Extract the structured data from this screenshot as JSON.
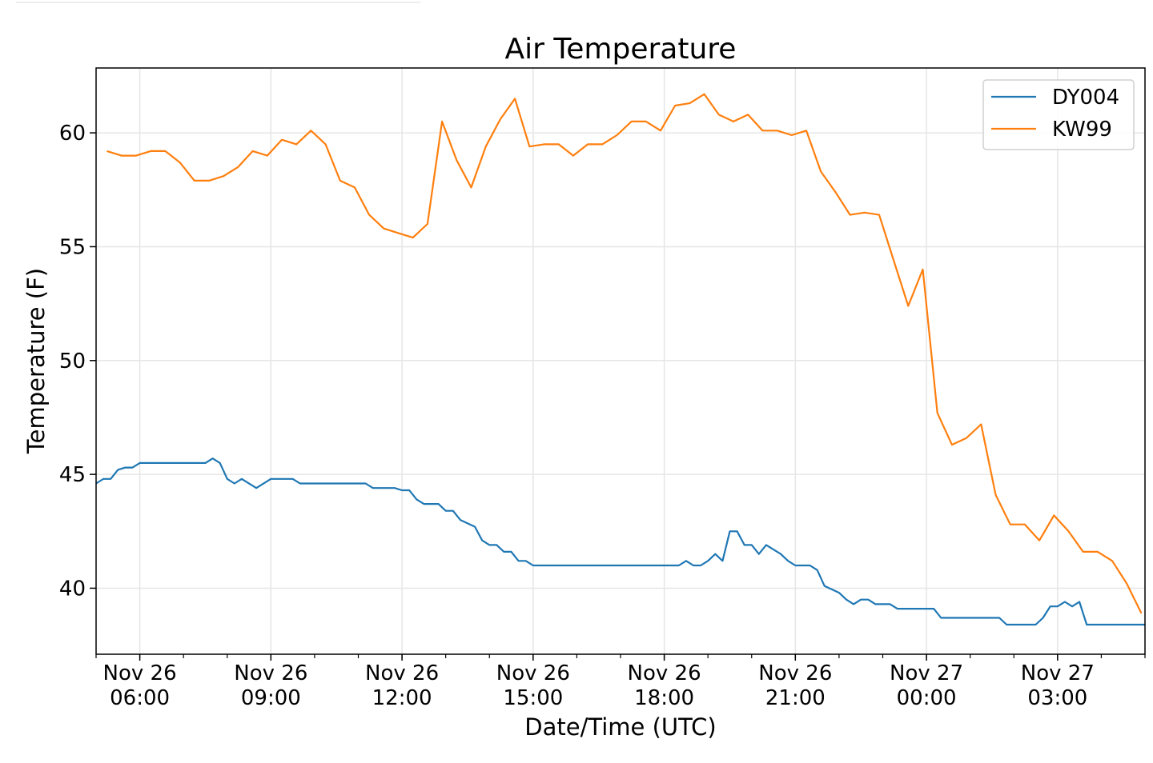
{
  "chart_data": {
    "type": "line",
    "title": "Air Temperature",
    "xlabel": "Date/Time (UTC)",
    "ylabel": "Temperature (F)",
    "xlim": [
      "Nov 26 05:00",
      "Nov 27 05:00"
    ],
    "ylim": [
      37.1,
      62.85
    ],
    "grid": true,
    "legend_position": "top-right",
    "y_ticks": [
      40,
      45,
      50,
      55,
      60
    ],
    "x_ticks": [
      {
        "time": "Nov 26 06:00",
        "label": [
          "Nov 26",
          "06:00"
        ]
      },
      {
        "time": "Nov 26 09:00",
        "label": [
          "Nov 26",
          "09:00"
        ]
      },
      {
        "time": "Nov 26 12:00",
        "label": [
          "Nov 26",
          "12:00"
        ]
      },
      {
        "time": "Nov 26 15:00",
        "label": [
          "Nov 26",
          "15:00"
        ]
      },
      {
        "time": "Nov 26 18:00",
        "label": [
          "Nov 26",
          "18:00"
        ]
      },
      {
        "time": "Nov 26 21:00",
        "label": [
          "Nov 26",
          "21:00"
        ]
      },
      {
        "time": "Nov 27 00:00",
        "label": [
          "Nov 27",
          "00:00"
        ]
      },
      {
        "time": "Nov 27 03:00",
        "label": [
          "Nov 27",
          "03:00"
        ]
      }
    ],
    "series": [
      {
        "name": "DY004",
        "color": "#1f77b4",
        "x": [
          "Nov 26 05:00",
          "Nov 26 05:10",
          "Nov 26 05:20",
          "Nov 26 05:30",
          "Nov 26 05:40",
          "Nov 26 05:50",
          "Nov 26 06:00",
          "Nov 26 07:30",
          "Nov 26 07:40",
          "Nov 26 07:50",
          "Nov 26 08:00",
          "Nov 26 08:10",
          "Nov 26 08:20",
          "Nov 26 08:40",
          "Nov 26 09:00",
          "Nov 26 09:30",
          "Nov 26 09:40",
          "Nov 26 11:10",
          "Nov 26 11:20",
          "Nov 26 11:50",
          "Nov 26 12:00",
          "Nov 26 12:10",
          "Nov 26 12:20",
          "Nov 26 12:30",
          "Nov 26 12:50",
          "Nov 26 13:00",
          "Nov 26 13:10",
          "Nov 26 13:20",
          "Nov 26 13:40",
          "Nov 26 13:50",
          "Nov 26 14:00",
          "Nov 26 14:10",
          "Nov 26 14:20",
          "Nov 26 14:30",
          "Nov 26 14:40",
          "Nov 26 14:50",
          "Nov 26 15:00",
          "Nov 26 18:20",
          "Nov 26 18:30",
          "Nov 26 18:40",
          "Nov 26 18:50",
          "Nov 26 19:00",
          "Nov 26 19:10",
          "Nov 26 19:20",
          "Nov 26 19:30",
          "Nov 26 19:40",
          "Nov 26 19:50",
          "Nov 26 20:00",
          "Nov 26 20:10",
          "Nov 26 20:20",
          "Nov 26 20:40",
          "Nov 26 20:50",
          "Nov 26 21:00",
          "Nov 26 21:20",
          "Nov 26 21:30",
          "Nov 26 21:40",
          "Nov 26 22:00",
          "Nov 26 22:10",
          "Nov 26 22:20",
          "Nov 26 22:30",
          "Nov 26 22:40",
          "Nov 26 22:50",
          "Nov 26 23:10",
          "Nov 26 23:20",
          "Nov 27 00:10",
          "Nov 27 00:20",
          "Nov 27 01:40",
          "Nov 27 01:50",
          "Nov 27 02:30",
          "Nov 27 02:40",
          "Nov 27 02:50",
          "Nov 27 03:00",
          "Nov 27 03:10",
          "Nov 27 03:20",
          "Nov 27 03:30",
          "Nov 27 03:40",
          "Nov 27 05:00"
        ],
        "y": [
          44.6,
          44.8,
          44.8,
          45.2,
          45.3,
          45.3,
          45.5,
          45.5,
          45.7,
          45.5,
          44.8,
          44.6,
          44.8,
          44.4,
          44.8,
          44.8,
          44.6,
          44.6,
          44.4,
          44.4,
          44.3,
          44.3,
          43.9,
          43.7,
          43.7,
          43.4,
          43.4,
          43.0,
          42.7,
          42.1,
          41.9,
          41.9,
          41.6,
          41.6,
          41.2,
          41.2,
          41.0,
          41.0,
          41.2,
          41.0,
          41.0,
          41.2,
          41.5,
          41.2,
          42.5,
          42.5,
          41.9,
          41.9,
          41.5,
          41.9,
          41.5,
          41.2,
          41.0,
          41.0,
          40.8,
          40.1,
          39.8,
          39.5,
          39.3,
          39.5,
          39.5,
          39.3,
          39.3,
          39.1,
          39.1,
          38.7,
          38.7,
          38.4,
          38.4,
          38.7,
          39.2,
          39.2,
          39.4,
          39.2,
          39.4,
          38.4,
          38.4
        ]
      },
      {
        "name": "KW99",
        "color": "#ff7f0e",
        "x": [
          "Nov 26 05:15",
          "Nov 26 05:35",
          "Nov 26 05:55",
          "Nov 26 06:15",
          "Nov 26 06:35",
          "Nov 26 06:55",
          "Nov 26 07:15",
          "Nov 26 07:35",
          "Nov 26 07:55",
          "Nov 26 08:15",
          "Nov 26 08:35",
          "Nov 26 08:55",
          "Nov 26 09:15",
          "Nov 26 09:35",
          "Nov 26 09:55",
          "Nov 26 10:15",
          "Nov 26 10:35",
          "Nov 26 10:55",
          "Nov 26 11:15",
          "Nov 26 11:35",
          "Nov 26 11:55",
          "Nov 26 12:15",
          "Nov 26 12:35",
          "Nov 26 12:55",
          "Nov 26 13:15",
          "Nov 26 13:35",
          "Nov 26 13:55",
          "Nov 26 14:15",
          "Nov 26 14:35",
          "Nov 26 14:55",
          "Nov 26 15:15",
          "Nov 26 15:35",
          "Nov 26 15:55",
          "Nov 26 16:15",
          "Nov 26 16:35",
          "Nov 26 16:55",
          "Nov 26 17:15",
          "Nov 26 17:35",
          "Nov 26 17:55",
          "Nov 26 18:15",
          "Nov 26 18:35",
          "Nov 26 18:55",
          "Nov 26 19:15",
          "Nov 26 19:35",
          "Nov 26 19:55",
          "Nov 26 20:15",
          "Nov 26 20:35",
          "Nov 26 20:55",
          "Nov 26 21:15",
          "Nov 26 21:35",
          "Nov 26 21:55",
          "Nov 26 22:15",
          "Nov 26 22:35",
          "Nov 26 22:55",
          "Nov 26 23:15",
          "Nov 26 23:35",
          "Nov 26 23:55",
          "Nov 27 00:15",
          "Nov 27 00:35",
          "Nov 27 00:55",
          "Nov 27 01:15",
          "Nov 27 01:35",
          "Nov 27 01:55",
          "Nov 27 02:15",
          "Nov 27 02:35",
          "Nov 27 02:55",
          "Nov 27 03:15",
          "Nov 27 03:35",
          "Nov 27 03:55",
          "Nov 27 04:15",
          "Nov 27 04:35",
          "Nov 27 04:55"
        ],
        "y": [
          59.2,
          59.0,
          59.0,
          59.2,
          59.2,
          58.7,
          57.9,
          57.9,
          58.1,
          58.5,
          59.2,
          59.0,
          59.7,
          59.5,
          60.1,
          59.5,
          57.9,
          57.6,
          56.4,
          55.8,
          55.6,
          55.4,
          56.0,
          60.5,
          58.8,
          57.6,
          59.4,
          60.6,
          61.5,
          59.4,
          59.5,
          59.5,
          59.0,
          59.5,
          59.5,
          59.9,
          60.5,
          60.5,
          60.1,
          61.2,
          61.3,
          61.7,
          60.8,
          60.5,
          60.8,
          60.1,
          60.1,
          59.9,
          60.1,
          58.3,
          57.4,
          56.4,
          56.5,
          56.4,
          54.4,
          52.4,
          54.0,
          47.7,
          46.3,
          46.6,
          47.2,
          44.1,
          42.8,
          42.8,
          42.1,
          43.2,
          42.5,
          41.6,
          41.6,
          41.2,
          40.2,
          38.9
        ]
      }
    ]
  }
}
